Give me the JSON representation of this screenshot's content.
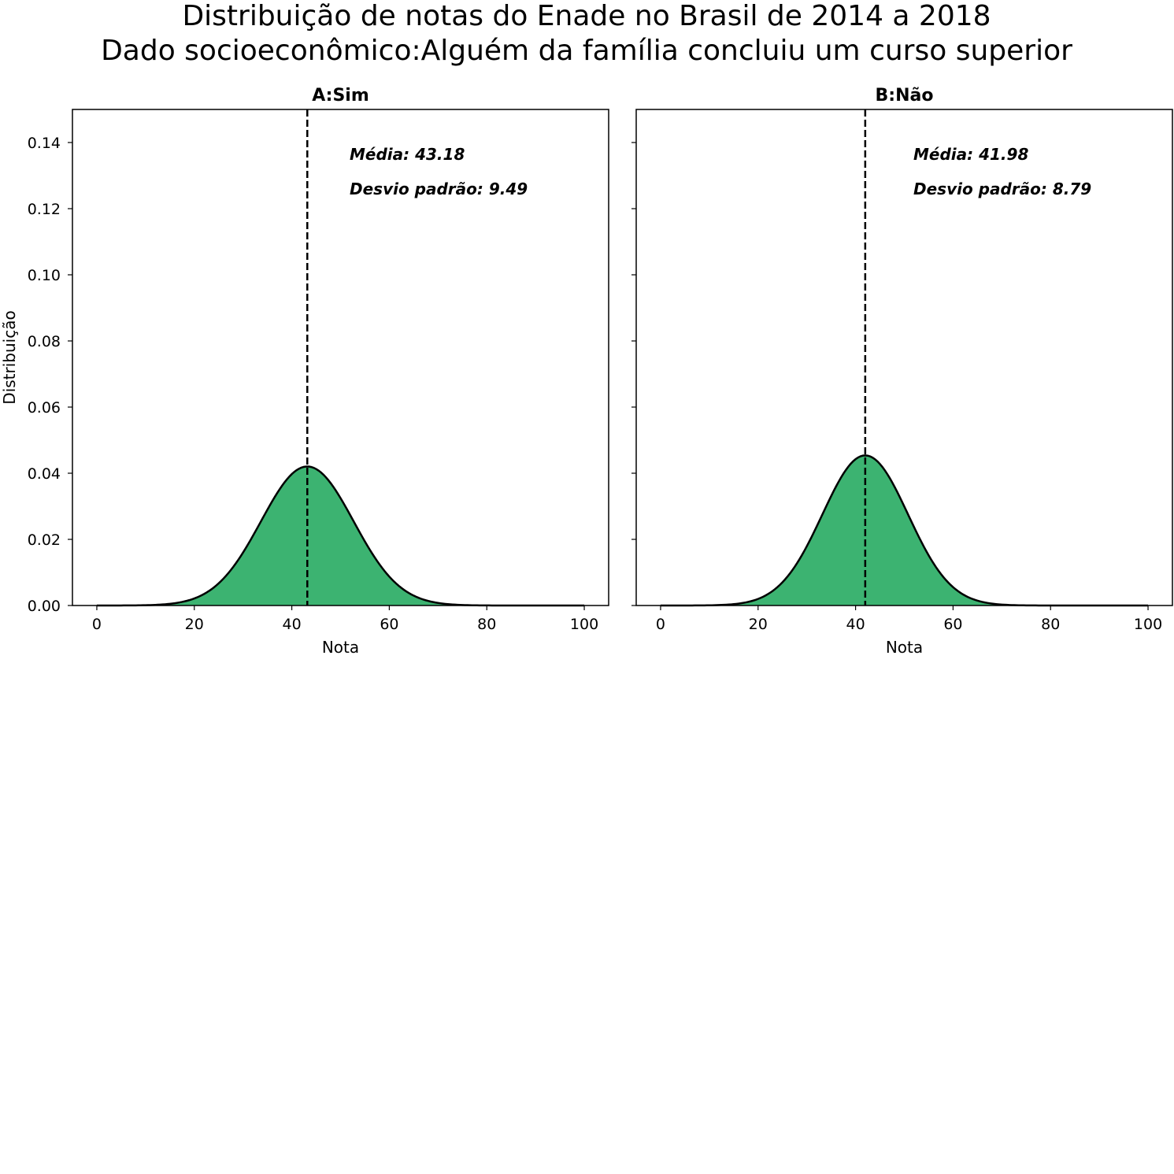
{
  "title_lines": [
    "Distribuição de notas do Enade no Brasil de 2014 a 2018",
    "Dado socioeconômico:Alguém da família concluiu um curso superior"
  ],
  "colors": {
    "fill": "#3cb371",
    "curve": "#000000",
    "mean_line": "#000000",
    "axes": "#000000"
  },
  "chart_data": [
    {
      "type": "area",
      "title": "A:Sim",
      "xlabel": "Nota",
      "ylabel": "Distribuição",
      "xlim": [
        -5,
        105
      ],
      "ylim": [
        0,
        0.15
      ],
      "xticks": [
        0,
        20,
        40,
        60,
        80,
        100
      ],
      "xtick_labels": [
        "0",
        "20",
        "40",
        "60",
        "80",
        "100"
      ],
      "yticks": [
        0,
        0.02,
        0.04,
        0.06,
        0.08,
        0.1,
        0.12,
        0.14
      ],
      "ytick_labels": [
        "0.00",
        "0.02",
        "0.04",
        "0.06",
        "0.08",
        "0.10",
        "0.12",
        "0.14"
      ],
      "show_ytick_labels": true,
      "distribution": "normal",
      "mean": 43.18,
      "std": 9.49,
      "x_range": [
        0,
        100
      ],
      "annotations": [
        "Média: 43.18",
        "Desvio padrão: 9.49"
      ]
    },
    {
      "type": "area",
      "title": "B:Não",
      "xlabel": "Nota",
      "ylabel": "",
      "xlim": [
        -5,
        105
      ],
      "ylim": [
        0,
        0.15
      ],
      "xticks": [
        0,
        20,
        40,
        60,
        80,
        100
      ],
      "xtick_labels": [
        "0",
        "20",
        "40",
        "60",
        "80",
        "100"
      ],
      "yticks": [
        0,
        0.02,
        0.04,
        0.06,
        0.08,
        0.1,
        0.12,
        0.14
      ],
      "ytick_labels": [
        "0.00",
        "0.02",
        "0.04",
        "0.06",
        "0.08",
        "0.10",
        "0.12",
        "0.14"
      ],
      "show_ytick_labels": false,
      "distribution": "normal",
      "mean": 41.98,
      "std": 8.79,
      "x_range": [
        0,
        100
      ],
      "annotations": [
        "Média: 41.98",
        "Desvio padrão: 8.79"
      ]
    }
  ]
}
